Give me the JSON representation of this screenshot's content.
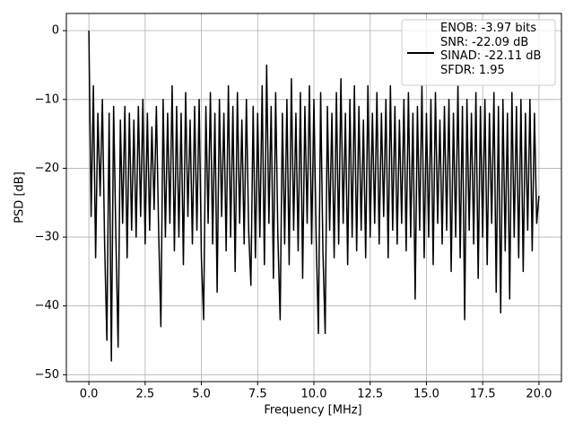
{
  "chart_data": {
    "type": "line",
    "xlabel": "Frequency [MHz]",
    "ylabel": "PSD [dB]",
    "xlim": [
      -1.0,
      21.0
    ],
    "ylim": [
      -51,
      2.5
    ],
    "xticks": [
      {
        "value": 0,
        "label": "0.0"
      },
      2.5,
      {
        "value": 5,
        "label": "5.0"
      },
      7.5,
      {
        "value": 10,
        "label": "10.0"
      },
      12.5,
      {
        "value": 15,
        "label": "15.0"
      },
      17.5,
      {
        "value": 20,
        "label": "20.0"
      }
    ],
    "yticks": [
      0,
      {
        "value": -10,
        "label": "−10"
      },
      {
        "value": -20,
        "label": "−20"
      },
      {
        "value": -30,
        "label": "−30"
      },
      {
        "value": -40,
        "label": "−40"
      },
      {
        "value": -50,
        "label": "−50"
      }
    ],
    "grid": true,
    "legend": "upper right",
    "x": [
      0,
      0.1,
      0.2,
      0.3,
      0.4,
      0.5,
      0.6,
      0.7,
      0.8,
      0.9,
      1,
      1.1,
      1.2,
      1.3,
      1.4,
      1.5,
      1.6,
      1.7,
      1.8,
      1.9,
      2,
      2.1,
      2.2,
      2.3,
      2.4,
      2.5,
      2.6,
      2.7,
      2.8,
      2.9,
      3,
      3.1,
      3.2,
      3.3,
      3.4,
      3.5,
      3.6,
      3.7,
      3.8,
      3.9,
      4,
      4.1,
      4.2,
      4.3,
      4.4,
      4.5,
      4.6,
      4.7,
      4.8,
      4.9,
      5,
      5.1,
      5.2,
      5.3,
      5.4,
      5.5,
      5.6,
      5.7,
      5.8,
      5.9,
      6,
      6.1,
      6.2,
      6.3,
      6.4,
      6.5,
      6.6,
      6.7,
      6.8,
      6.9,
      7,
      7.1,
      7.2,
      7.3,
      7.4,
      7.5,
      7.6,
      7.7,
      7.8,
      7.9,
      8,
      8.1,
      8.2,
      8.3,
      8.4,
      8.5,
      8.6,
      8.7,
      8.8,
      8.9,
      9,
      9.1,
      9.2,
      9.3,
      9.4,
      9.5,
      9.6,
      9.7,
      9.8,
      9.9,
      10,
      10.1,
      10.2,
      10.3,
      10.4,
      10.5,
      10.6,
      10.7,
      10.8,
      10.9,
      11,
      11.1,
      11.2,
      11.3,
      11.4,
      11.5,
      11.6,
      11.7,
      11.8,
      11.9,
      12,
      12.1,
      12.2,
      12.3,
      12.4,
      12.5,
      12.6,
      12.7,
      12.8,
      12.9,
      13,
      13.1,
      13.2,
      13.3,
      13.4,
      13.5,
      13.6,
      13.7,
      13.8,
      13.9,
      14,
      14.1,
      14.2,
      14.3,
      14.4,
      14.5,
      14.6,
      14.7,
      14.8,
      14.9,
      15,
      15.1,
      15.2,
      15.3,
      15.4,
      15.5,
      15.6,
      15.7,
      15.8,
      15.9,
      16,
      16.1,
      16.2,
      16.3,
      16.4,
      16.5,
      16.6,
      16.7,
      16.8,
      16.9,
      17,
      17.1,
      17.2,
      17.3,
      17.4,
      17.5,
      17.6,
      17.7,
      17.8,
      17.9,
      18,
      18.1,
      18.2,
      18.3,
      18.4,
      18.5,
      18.6,
      18.7,
      18.8,
      18.9,
      19,
      19.1,
      19.2,
      19.3,
      19.4,
      19.5,
      19.6,
      19.7,
      19.8,
      19.9,
      20
    ],
    "series": [
      {
        "name": "ENOB: -3.97 bits\nSNR: -22.09 dB\nSINAD: -22.11 dB\nSFDR: 1.95",
        "color": "#000000",
        "values": [
          0,
          -27,
          -8,
          -33,
          -12,
          -24,
          -10,
          -31,
          -45,
          -12,
          -48,
          -11,
          -30,
          -46,
          -13,
          -28,
          -11,
          -33,
          -12,
          -29,
          -13,
          -30,
          -11,
          -27,
          -10,
          -31,
          -12,
          -29,
          -14,
          -26,
          -11,
          -29,
          -43,
          -10,
          -30,
          -12,
          -28,
          -8,
          -32,
          -11,
          -30,
          -12,
          -34,
          -9,
          -27,
          -13,
          -31,
          -11,
          -29,
          -10,
          -33,
          -42,
          -11,
          -28,
          -9,
          -31,
          -12,
          -38,
          -10,
          -27,
          -12,
          -32,
          -8,
          -30,
          -11,
          -35,
          -9,
          -28,
          -13,
          -31,
          -10,
          -29,
          -37,
          -11,
          -33,
          -12,
          -30,
          -8,
          -34,
          -5,
          -28,
          -11,
          -36,
          -9,
          -30,
          -42,
          -12,
          -31,
          -10,
          -34,
          -7,
          -29,
          -12,
          -32,
          -9,
          -36,
          -11,
          -28,
          -8,
          -31,
          -10,
          -30,
          -44,
          -9,
          -32,
          -44,
          -11,
          -29,
          -12,
          -33,
          -9,
          -31,
          -7,
          -28,
          -12,
          -34,
          -10,
          -30,
          -8,
          -32,
          -11,
          -29,
          -13,
          -33,
          -8,
          -30,
          -12,
          -28,
          -9,
          -31,
          -12,
          -27,
          -10,
          -33,
          -8,
          -29,
          -11,
          -31,
          -13,
          -28,
          -10,
          -32,
          -9,
          -30,
          -12,
          -39,
          -11,
          -29,
          -8,
          -33,
          -12,
          -30,
          -10,
          -34,
          -9,
          -28,
          -13,
          -31,
          -11,
          -29,
          -10,
          -35,
          -12,
          -30,
          -8,
          -33,
          -11,
          -42,
          -10,
          -29,
          -12,
          -31,
          -9,
          -36,
          -11,
          -30,
          -10,
          -34,
          -12,
          -28,
          -9,
          -38,
          -11,
          -41,
          -10,
          -32,
          -12,
          -39,
          -9,
          -30,
          -11,
          -33,
          -10,
          -35,
          -12,
          -29,
          -10,
          -32,
          -12,
          -28,
          -24
        ]
      }
    ]
  }
}
